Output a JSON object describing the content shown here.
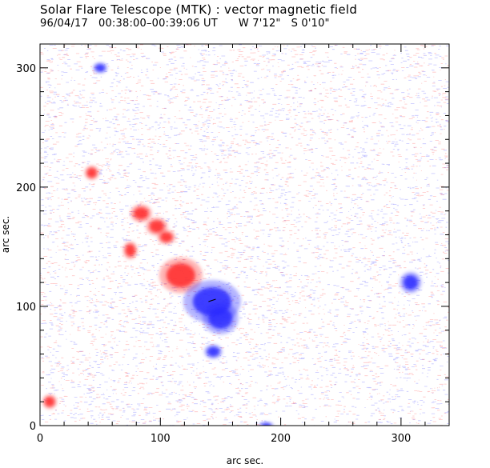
{
  "header": {
    "title": "Solar Flare Telescope (MTK) : vector magnetic field",
    "subtitle": "96/04/17   00:38:00–00:39:06 UT      W 7'12\"   S 0'10\""
  },
  "chart_data": {
    "type": "heatmap",
    "xlabel": "arc sec.",
    "ylabel": "arc sec.",
    "xlim": [
      0,
      340
    ],
    "ylim": [
      0,
      320
    ],
    "x_ticks": [
      0,
      100,
      200,
      300
    ],
    "y_ticks": [
      0,
      100,
      200,
      300
    ],
    "colors": {
      "positive": "#ff2a2a",
      "negative": "#2a2aff",
      "vector": "#000000"
    },
    "features": [
      {
        "polarity": "positive",
        "x": 117,
        "y": 126,
        "rx": 12,
        "ry": 10
      },
      {
        "polarity": "negative",
        "x": 143,
        "y": 104,
        "rx": 16,
        "ry": 12
      },
      {
        "polarity": "negative",
        "x": 150,
        "y": 90,
        "rx": 10,
        "ry": 9
      },
      {
        "polarity": "negative",
        "x": 144,
        "y": 62,
        "rx": 5,
        "ry": 4
      },
      {
        "polarity": "negative",
        "x": 50,
        "y": 300,
        "rx": 4,
        "ry": 3
      },
      {
        "polarity": "negative",
        "x": 188,
        "y": 0,
        "rx": 4,
        "ry": 2
      },
      {
        "polarity": "positive",
        "x": 84,
        "y": 178,
        "rx": 6,
        "ry": 5
      },
      {
        "polarity": "positive",
        "x": 97,
        "y": 167,
        "rx": 6,
        "ry": 5
      },
      {
        "polarity": "positive",
        "x": 105,
        "y": 158,
        "rx": 5,
        "ry": 4
      },
      {
        "polarity": "positive",
        "x": 75,
        "y": 147,
        "rx": 4,
        "ry": 5
      },
      {
        "polarity": "positive",
        "x": 43,
        "y": 212,
        "rx": 4,
        "ry": 4
      },
      {
        "polarity": "positive",
        "x": 8,
        "y": 20,
        "rx": 4,
        "ry": 4
      },
      {
        "polarity": "negative",
        "x": 308,
        "y": 120,
        "rx": 6,
        "ry": 6
      }
    ]
  }
}
